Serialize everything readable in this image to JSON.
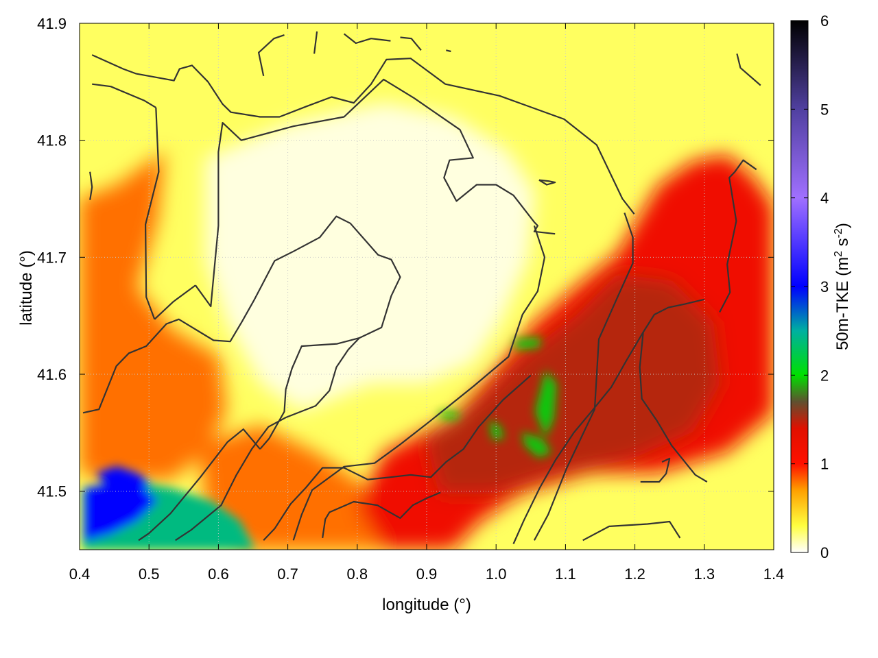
{
  "chart_data": {
    "type": "heatmap",
    "title": "",
    "xlabel": "longitude (°)",
    "ylabel": "latitude (°)",
    "colorbar_label": "50m-TKE (m² s⁻²)",
    "colorbar_label_parts": {
      "base": "50m-TKE (m",
      "sup1": "2",
      "mid": " s",
      "sup2": "-2",
      "end": ")"
    },
    "xlim": [
      0.4,
      1.4
    ],
    "ylim": [
      41.45,
      41.9
    ],
    "xticks": [
      0.4,
      0.5,
      0.6,
      0.7,
      0.8,
      0.9,
      1.0,
      1.1,
      1.2,
      1.3,
      1.4
    ],
    "xtick_labels": [
      "0.4",
      "0.5",
      "0.6",
      "0.7",
      "0.8",
      "0.9",
      "1.0",
      "1.1",
      "1.2",
      "1.3",
      "1.4"
    ],
    "yticks": [
      41.5,
      41.6,
      41.7,
      41.8,
      41.9
    ],
    "ytick_labels": [
      "41.5",
      "41.6",
      "41.7",
      "41.8",
      "41.9"
    ],
    "colorbar_range": [
      0,
      6
    ],
    "colorbar_ticks": [
      0,
      1,
      2,
      3,
      4,
      5,
      6
    ],
    "colorbar_tick_labels": [
      "0",
      "1",
      "2",
      "3",
      "4",
      "5",
      "6"
    ],
    "colormap": [
      {
        "v": 0.0,
        "color": "#ffffff"
      },
      {
        "v": 0.3,
        "color": "#ffff40"
      },
      {
        "v": 0.7,
        "color": "#ffa000"
      },
      {
        "v": 1.0,
        "color": "#ff1000"
      },
      {
        "v": 1.4,
        "color": "#e01000"
      },
      {
        "v": 1.7,
        "color": "#605030"
      },
      {
        "v": 2.0,
        "color": "#00e000"
      },
      {
        "v": 2.5,
        "color": "#00b0a0"
      },
      {
        "v": 3.0,
        "color": "#0000ff"
      },
      {
        "v": 4.0,
        "color": "#a070ff"
      },
      {
        "v": 5.0,
        "color": "#5040a0"
      },
      {
        "v": 6.0,
        "color": "#000000"
      }
    ],
    "grid": true,
    "field_regions": [
      {
        "name": "background",
        "value": 0.25
      },
      {
        "name": "southeast-high",
        "value": 1.2
      },
      {
        "name": "southeast-core",
        "value": 1.5
      },
      {
        "name": "green-patches",
        "value": 1.95
      },
      {
        "name": "west-band",
        "value": 0.8
      },
      {
        "name": "southwest-corner",
        "value": 2.4
      },
      {
        "name": "southwest-blue",
        "value": 3.0
      },
      {
        "name": "central-low",
        "value": 0.05
      }
    ],
    "contours": [
      {
        "points": [
          [
            0.418,
            41.873
          ],
          [
            0.463,
            41.861
          ],
          [
            0.481,
            41.857
          ],
          [
            0.536,
            41.851
          ],
          [
            0.544,
            41.861
          ],
          [
            0.562,
            41.864
          ],
          [
            0.585,
            41.85
          ],
          [
            0.606,
            41.831
          ],
          [
            0.618,
            41.824
          ],
          [
            0.66,
            41.82
          ],
          [
            0.688,
            41.82
          ],
          [
            0.727,
            41.829
          ],
          [
            0.763,
            41.837
          ],
          [
            0.795,
            41.832
          ],
          [
            0.82,
            41.848
          ],
          [
            0.842,
            41.869
          ],
          [
            0.877,
            41.87
          ],
          [
            0.927,
            41.848
          ],
          [
            1.005,
            41.838
          ],
          [
            1.098,
            41.818
          ],
          [
            1.145,
            41.796
          ],
          [
            1.182,
            41.75
          ],
          [
            1.199,
            41.737
          ]
        ]
      },
      {
        "points": [
          [
            0.418,
            41.848
          ],
          [
            0.445,
            41.846
          ],
          [
            0.493,
            41.834
          ],
          [
            0.51,
            41.828
          ]
        ]
      },
      {
        "points": [
          [
            0.51,
            41.828
          ],
          [
            0.514,
            41.773
          ],
          [
            0.495,
            41.728
          ],
          [
            0.496,
            41.666
          ],
          [
            0.508,
            41.647
          ]
        ]
      },
      {
        "points": [
          [
            0.508,
            41.647
          ],
          [
            0.535,
            41.662
          ],
          [
            0.567,
            41.676
          ]
        ]
      },
      {
        "points": [
          [
            0.567,
            41.676
          ],
          [
            0.589,
            41.658
          ],
          [
            0.6,
            41.727
          ],
          [
            0.6,
            41.79
          ],
          [
            0.606,
            41.815
          ],
          [
            0.633,
            41.8
          ],
          [
            0.708,
            41.812
          ],
          [
            0.781,
            41.82
          ],
          [
            0.838,
            41.852
          ],
          [
            0.882,
            41.836
          ],
          [
            0.948,
            41.809
          ],
          [
            0.967,
            41.785
          ],
          [
            0.933,
            41.783
          ],
          [
            0.925,
            41.768
          ],
          [
            0.943,
            41.748
          ],
          [
            0.972,
            41.762
          ],
          [
            1.0,
            41.762
          ],
          [
            1.025,
            41.753
          ],
          [
            1.055,
            41.73
          ],
          [
            1.06,
            41.727
          ],
          [
            1.055,
            41.722
          ],
          [
            1.085,
            41.72
          ]
        ]
      },
      {
        "points": [
          [
            1.055,
            41.727
          ],
          [
            1.07,
            41.7
          ],
          [
            1.06,
            41.671
          ],
          [
            1.038,
            41.651
          ],
          [
            1.018,
            41.615
          ],
          [
            0.968,
            41.59
          ],
          [
            0.905,
            41.56
          ],
          [
            0.862,
            41.54
          ],
          [
            0.825,
            41.524
          ],
          [
            0.781,
            41.521
          ],
          [
            0.735,
            41.501
          ],
          [
            0.72,
            41.48
          ],
          [
            0.708,
            41.458
          ]
        ]
      },
      {
        "points": [
          [
            1.062,
            41.766
          ],
          [
            1.077,
            41.765
          ],
          [
            1.085,
            41.764
          ],
          [
            1.073,
            41.762
          ],
          [
            1.062,
            41.766
          ]
        ]
      },
      {
        "points": [
          [
            1.185,
            41.738
          ],
          [
            1.197,
            41.717
          ],
          [
            1.197,
            41.695
          ],
          [
            1.175,
            41.666
          ],
          [
            1.148,
            41.63
          ],
          [
            1.142,
            41.57
          ],
          [
            1.102,
            41.52
          ],
          [
            1.075,
            41.48
          ],
          [
            1.055,
            41.458
          ]
        ]
      },
      {
        "points": [
          [
            0.405,
            41.567
          ],
          [
            0.428,
            41.57
          ],
          [
            0.453,
            41.607
          ],
          [
            0.471,
            41.618
          ],
          [
            0.496,
            41.624
          ],
          [
            0.525,
            41.643
          ],
          [
            0.543,
            41.647
          ],
          [
            0.593,
            41.629
          ],
          [
            0.617,
            41.628
          ],
          [
            0.634,
            41.645
          ],
          [
            0.652,
            41.664
          ],
          [
            0.681,
            41.697
          ],
          [
            0.708,
            41.705
          ],
          [
            0.746,
            41.717
          ],
          [
            0.77,
            41.735
          ],
          [
            0.79,
            41.729
          ],
          [
            0.83,
            41.702
          ],
          [
            0.849,
            41.698
          ],
          [
            0.862,
            41.683
          ],
          [
            0.849,
            41.667
          ],
          [
            0.835,
            41.64
          ],
          [
            0.803,
            41.631
          ],
          [
            0.771,
            41.626
          ],
          [
            0.72,
            41.624
          ],
          [
            0.706,
            41.605
          ],
          [
            0.697,
            41.587
          ],
          [
            0.695,
            41.568
          ],
          [
            0.673,
            41.545
          ],
          [
            0.66,
            41.536
          ]
        ]
      },
      {
        "points": [
          [
            0.66,
            41.536
          ],
          [
            0.636,
            41.553
          ],
          [
            0.613,
            41.542
          ],
          [
            0.574,
            41.512
          ],
          [
            0.531,
            41.481
          ],
          [
            0.5,
            41.464
          ],
          [
            0.485,
            41.458
          ]
        ]
      },
      {
        "points": [
          [
            0.538,
            41.458
          ],
          [
            0.561,
            41.467
          ],
          [
            0.604,
            41.488
          ],
          [
            0.626,
            41.514
          ],
          [
            0.648,
            41.536
          ],
          [
            0.672,
            41.555
          ],
          [
            0.697,
            41.563
          ],
          [
            0.74,
            41.573
          ],
          [
            0.76,
            41.586
          ],
          [
            0.77,
            41.606
          ],
          [
            0.787,
            41.621
          ],
          [
            0.803,
            41.631
          ]
        ]
      },
      {
        "points": [
          [
            0.665,
            41.458
          ],
          [
            0.681,
            41.468
          ],
          [
            0.704,
            41.489
          ],
          [
            0.726,
            41.503
          ],
          [
            0.75,
            41.52
          ],
          [
            0.781,
            41.52
          ],
          [
            0.815,
            41.51
          ],
          [
            0.848,
            41.512
          ],
          [
            0.877,
            41.514
          ],
          [
            0.906,
            41.512
          ],
          [
            0.928,
            41.525
          ],
          [
            0.953,
            41.536
          ],
          [
            0.975,
            41.555
          ],
          [
            1.01,
            41.578
          ],
          [
            1.05,
            41.599
          ]
        ]
      },
      {
        "points": [
          [
            0.75,
            41.46
          ],
          [
            0.754,
            41.476
          ],
          [
            0.76,
            41.482
          ],
          [
            0.795,
            41.491
          ],
          [
            0.829,
            41.488
          ],
          [
            0.847,
            41.482
          ],
          [
            0.862,
            41.477
          ],
          [
            0.88,
            41.488
          ],
          [
            0.9,
            41.494
          ],
          [
            0.92,
            41.499
          ]
        ]
      },
      {
        "points": [
          [
            1.025,
            41.455
          ],
          [
            1.04,
            41.475
          ],
          [
            1.063,
            41.503
          ],
          [
            1.086,
            41.527
          ],
          [
            1.112,
            41.55
          ],
          [
            1.14,
            41.57
          ],
          [
            1.166,
            41.589
          ],
          [
            1.188,
            41.612
          ],
          [
            1.212,
            41.636
          ],
          [
            1.228,
            41.651
          ],
          [
            1.248,
            41.657
          ],
          [
            1.272,
            41.66
          ],
          [
            1.3,
            41.664
          ]
        ]
      },
      {
        "points": [
          [
            1.212,
            41.636
          ],
          [
            1.207,
            41.606
          ],
          [
            1.21,
            41.579
          ],
          [
            1.232,
            41.56
          ],
          [
            1.253,
            41.539
          ],
          [
            1.268,
            41.528
          ],
          [
            1.287,
            41.514
          ],
          [
            1.304,
            41.508
          ]
        ]
      },
      {
        "points": [
          [
            1.322,
            41.653
          ],
          [
            1.337,
            41.67
          ],
          [
            1.333,
            41.694
          ],
          [
            1.346,
            41.731
          ],
          [
            1.336,
            41.768
          ],
          [
            1.344,
            41.773
          ],
          [
            1.356,
            41.783
          ],
          [
            1.375,
            41.775
          ]
        ]
      },
      {
        "points": [
          [
            1.239,
            41.525
          ],
          [
            1.25,
            41.528
          ],
          [
            1.245,
            41.515
          ],
          [
            1.235,
            41.508
          ],
          [
            1.208,
            41.508
          ]
        ]
      },
      {
        "points": [
          [
            1.125,
            41.458
          ],
          [
            1.163,
            41.47
          ],
          [
            1.218,
            41.472
          ],
          [
            1.25,
            41.474
          ],
          [
            1.265,
            41.46
          ]
        ]
      },
      {
        "points": [
          [
            0.665,
            41.855
          ],
          [
            0.658,
            41.875
          ],
          [
            0.68,
            41.887
          ],
          [
            0.695,
            41.89
          ]
        ]
      },
      {
        "points": [
          [
            0.738,
            41.874
          ],
          [
            0.742,
            41.893
          ]
        ]
      },
      {
        "points": [
          [
            0.781,
            41.891
          ],
          [
            0.798,
            41.883
          ],
          [
            0.82,
            41.887
          ],
          [
            0.848,
            41.885
          ]
        ]
      },
      {
        "points": [
          [
            0.862,
            41.888
          ],
          [
            0.878,
            41.887
          ],
          [
            0.892,
            41.877
          ]
        ]
      },
      {
        "points": [
          [
            0.928,
            41.877
          ],
          [
            0.935,
            41.876
          ]
        ]
      },
      {
        "points": [
          [
            1.347,
            41.874
          ],
          [
            1.352,
            41.862
          ],
          [
            1.381,
            41.847
          ]
        ]
      },
      {
        "points": [
          [
            0.415,
            41.773
          ],
          [
            0.418,
            41.76
          ],
          [
            0.415,
            41.749
          ]
        ]
      }
    ]
  }
}
